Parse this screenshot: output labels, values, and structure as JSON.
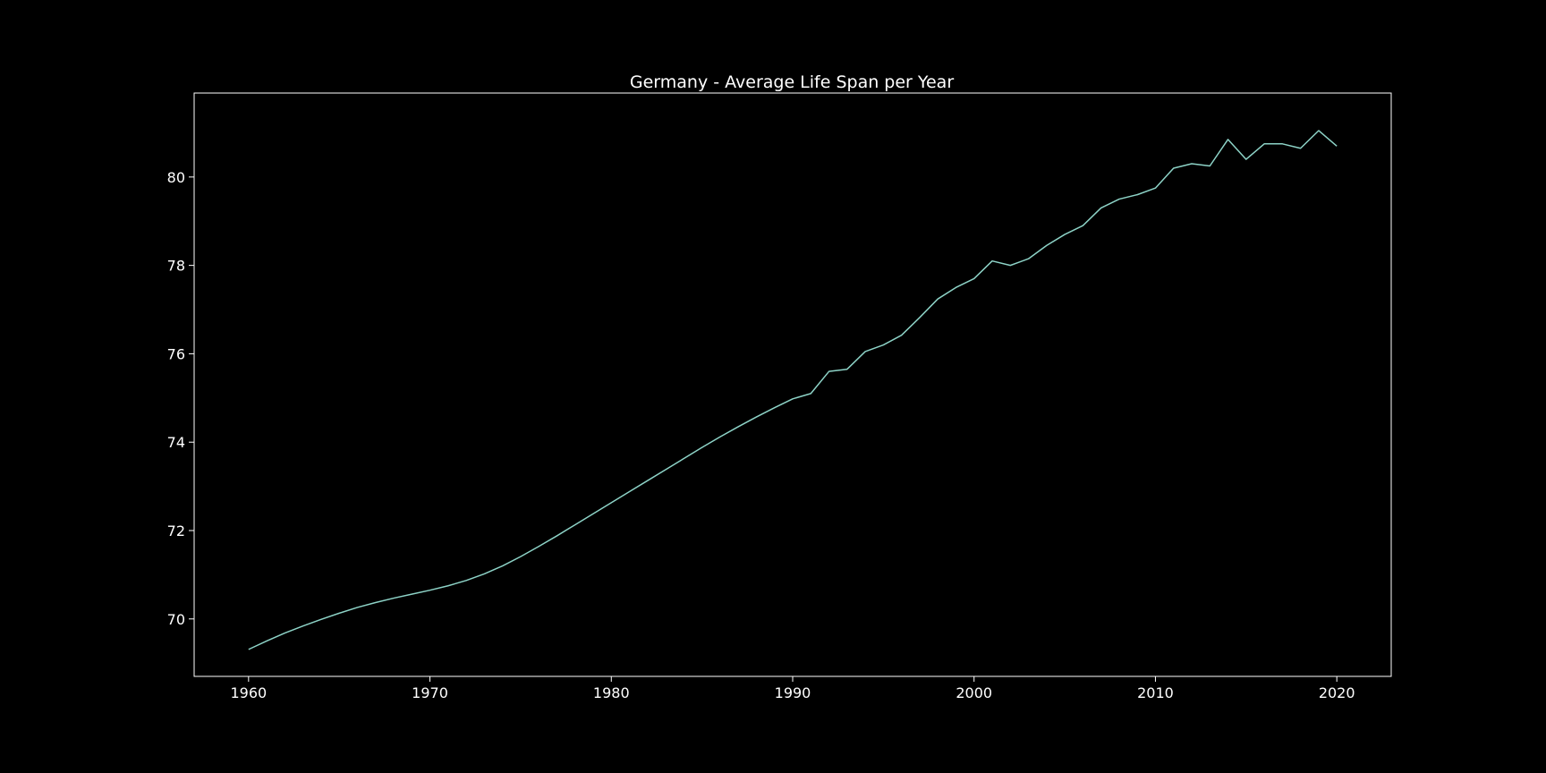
{
  "chart_data": {
    "type": "line",
    "title": "Germany - Average Life Span per Year",
    "xlabel": "",
    "ylabel": "",
    "xlim": [
      1957,
      2023
    ],
    "ylim": [
      68.7,
      81.9
    ],
    "x_ticks": [
      1960,
      1970,
      1980,
      1990,
      2000,
      2010,
      2020
    ],
    "y_ticks": [
      70,
      72,
      74,
      76,
      78,
      80
    ],
    "grid": false,
    "background": "#000000",
    "axes_color": "#ffffff",
    "series": [
      {
        "color": "#8dd3c7",
        "x": [
          1960,
          1961,
          1962,
          1963,
          1964,
          1965,
          1966,
          1967,
          1968,
          1969,
          1970,
          1971,
          1972,
          1973,
          1974,
          1975,
          1976,
          1977,
          1978,
          1979,
          1980,
          1981,
          1982,
          1983,
          1984,
          1985,
          1986,
          1987,
          1988,
          1989,
          1990,
          1991,
          1992,
          1993,
          1994,
          1995,
          1996,
          1997,
          1998,
          1999,
          2000,
          2001,
          2002,
          2003,
          2004,
          2005,
          2006,
          2007,
          2008,
          2009,
          2010,
          2011,
          2012,
          2013,
          2014,
          2015,
          2016,
          2017,
          2018,
          2019,
          2020
        ],
        "values": [
          69.31,
          69.5,
          69.68,
          69.84,
          69.99,
          70.13,
          70.26,
          70.37,
          70.47,
          70.56,
          70.65,
          70.75,
          70.87,
          71.02,
          71.2,
          71.41,
          71.64,
          71.88,
          72.13,
          72.38,
          72.63,
          72.88,
          73.13,
          73.38,
          73.63,
          73.88,
          74.12,
          74.35,
          74.57,
          74.78,
          74.98,
          75.1,
          75.6,
          75.65,
          76.05,
          76.2,
          76.42,
          76.82,
          77.24,
          77.5,
          77.7,
          78.1,
          78.0,
          78.15,
          78.45,
          78.7,
          78.9,
          79.3,
          79.5,
          79.6,
          79.75,
          80.2,
          80.3,
          80.25,
          80.85,
          80.4,
          80.75,
          80.75,
          80.65,
          81.05,
          80.7
        ]
      }
    ]
  }
}
